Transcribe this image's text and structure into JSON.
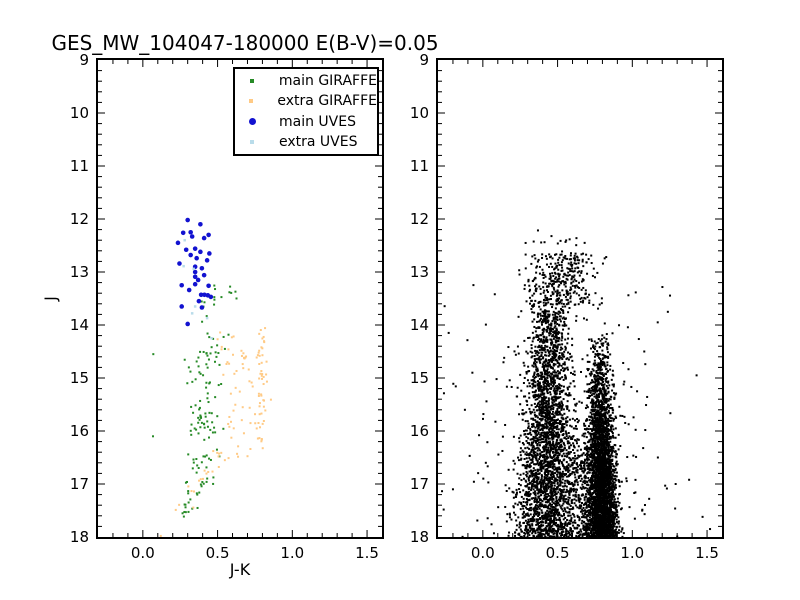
{
  "figure": {
    "background": "#ffffff",
    "title": "GES_MW_104047-180000 E(B-V)=0.05"
  },
  "chart_data": [
    {
      "id": "left-cmd",
      "type": "scatter",
      "title": "GES_MW_104047-180000 E(B-V)=0.05",
      "xlabel": "J-K",
      "ylabel": "J",
      "xlim": [
        -0.3,
        1.6
      ],
      "ylim": [
        18,
        9
      ],
      "grid": false,
      "xticks": {
        "values": [
          0.0,
          0.5,
          1.0,
          1.5
        ],
        "labels": [
          "0.0",
          "0.5",
          "1.0",
          "1.5"
        ],
        "minor_step": 0.1
      },
      "yticks": {
        "values": [
          9,
          10,
          11,
          12,
          13,
          14,
          15,
          16,
          17,
          18
        ],
        "labels": [
          "9",
          "10",
          "11",
          "12",
          "13",
          "14",
          "15",
          "16",
          "17",
          "18"
        ],
        "minor_step": 0.2
      },
      "legend": {
        "visible": true,
        "position": "upper center",
        "entries": [
          {
            "label": "main GIRAFFE",
            "color": "#268a26",
            "marker": "square",
            "display_size": 4
          },
          {
            "label": "extra GIRAFFE",
            "color": "#ffca85",
            "marker": "square",
            "display_size": 4
          },
          {
            "label": "main UVES",
            "color": "#1212d0",
            "marker": "circle",
            "display_size": 7
          },
          {
            "label": "extra UVES",
            "color": "#b9dcea",
            "marker": "square",
            "display_size": 4
          }
        ]
      },
      "seed": 20,
      "series": [
        {
          "name": "main GIRAFFE",
          "color": "#268a26",
          "marker": "square",
          "size": 2,
          "points": [
            [
              0.07,
              14.55
            ],
            [
              0.068,
              16.1
            ]
          ],
          "clusters": [
            {
              "n": 26,
              "j": [
                13.25,
                14.55
              ],
              "jpow": 1.0,
              "x0": 0.52,
              "xdrift": -0.04,
              "sx": 0.07,
              "sxg": 0,
              "clip": [
                0.38,
                0.72
              ]
            },
            {
              "n": 95,
              "j": [
                14.45,
                17.0
              ],
              "jpow": 1.05,
              "x0": 0.415,
              "xdrift": -0.008,
              "sx": 0.05,
              "sxg": 0,
              "clip": [
                0.28,
                0.58
              ]
            },
            {
              "n": 22,
              "j": [
                16.95,
                17.62
              ],
              "jpow": 1.0,
              "x0": 0.36,
              "xdrift": -0.09,
              "sx": 0.035,
              "sxg": 0,
              "clip": [
                0.22,
                0.48
              ]
            }
          ]
        },
        {
          "name": "extra GIRAFFE",
          "color": "#ffca85",
          "marker": "square",
          "size": 2,
          "points": [
            [
              0.12,
              17.98
            ]
          ],
          "clusters": [
            {
              "n": 52,
              "j": [
                14.0,
                16.35
              ],
              "jpow": 1.1,
              "x0": 0.795,
              "xdrift": 0.0,
              "sx": 0.022,
              "sxg": 0,
              "clip": [
                0.72,
                0.86
              ]
            },
            {
              "n": 44,
              "j": [
                14.55,
                16.6
              ],
              "jpow": 1.0,
              "x0": 0.66,
              "xdrift": -0.01,
              "sx": 0.065,
              "sxg": 0,
              "clip": [
                0.5,
                0.79
              ]
            },
            {
              "n": 9,
              "j": [
                13.95,
                14.55
              ],
              "jpow": 1.0,
              "x0": 0.58,
              "xdrift": 0.0,
              "sx": 0.045,
              "sxg": 0,
              "clip": [
                0.5,
                0.68
              ]
            },
            {
              "n": 18,
              "j": [
                16.35,
                17.9
              ],
              "jpow": 1.0,
              "x0": 0.52,
              "xdrift": -0.23,
              "sx": 0.03,
              "sxg": 0,
              "clip": [
                0.12,
                0.6
              ]
            }
          ]
        },
        {
          "name": "main UVES",
          "color": "#1212d0",
          "marker": "circle",
          "size": 4.6,
          "points": [
            [
              0.3,
              12.02
            ],
            [
              0.385,
              12.1
            ],
            [
              0.33,
              12.33
            ],
            [
              0.27,
              12.26
            ],
            [
              0.32,
              12.25
            ],
            [
              0.44,
              12.3
            ],
            [
              0.41,
              12.36
            ],
            [
              0.235,
              12.45
            ],
            [
              0.29,
              12.58
            ],
            [
              0.35,
              12.56
            ],
            [
              0.385,
              12.62
            ],
            [
              0.445,
              12.65
            ],
            [
              0.32,
              12.68
            ],
            [
              0.36,
              12.74
            ],
            [
              0.43,
              12.78
            ],
            [
              0.245,
              12.84
            ],
            [
              0.35,
              12.9
            ],
            [
              0.395,
              12.93
            ],
            [
              0.35,
              13.0
            ],
            [
              0.41,
              13.06
            ],
            [
              0.35,
              13.09
            ],
            [
              0.37,
              13.15
            ],
            [
              0.35,
              13.23
            ],
            [
              0.26,
              13.25
            ],
            [
              0.44,
              13.26
            ],
            [
              0.31,
              13.34
            ],
            [
              0.39,
              13.43
            ],
            [
              0.412,
              13.43
            ],
            [
              0.435,
              13.44
            ],
            [
              0.455,
              13.47
            ],
            [
              0.26,
              13.65
            ],
            [
              0.395,
              13.67
            ],
            [
              0.375,
              13.55
            ],
            [
              0.3,
              13.98
            ]
          ],
          "clusters": []
        },
        {
          "name": "extra UVES",
          "color": "#b9dcea",
          "marker": "square",
          "size": 2.5,
          "points": [
            [
              0.28,
              12.4
            ],
            [
              0.273,
              12.89
            ],
            [
              0.34,
              12.94
            ],
            [
              0.35,
              13.65
            ],
            [
              0.33,
              13.78
            ],
            [
              0.43,
              13.87
            ],
            [
              0.46,
              14.25
            ]
          ],
          "clusters": []
        }
      ]
    },
    {
      "id": "right-cmd",
      "type": "scatter",
      "title": "",
      "xlabel": "",
      "ylabel": "",
      "xlim": [
        -0.3,
        1.6
      ],
      "ylim": [
        18,
        9
      ],
      "grid": false,
      "xticks": {
        "values": [
          0.0,
          0.5,
          1.0,
          1.5
        ],
        "labels": [
          "0.0",
          "0.5",
          "1.0",
          "1.5"
        ],
        "minor_step": 0.1
      },
      "yticks": {
        "values": [
          9,
          10,
          11,
          12,
          13,
          14,
          15,
          16,
          17,
          18
        ],
        "labels": [
          "9",
          "10",
          "11",
          "12",
          "13",
          "14",
          "15",
          "16",
          "17",
          "18"
        ],
        "minor_step": 0.2
      },
      "legend": {
        "visible": false,
        "entries": []
      },
      "seed": 77,
      "series": [
        {
          "name": "",
          "color": "#000000",
          "marker": "square",
          "size": 2,
          "points": [
            [
              1.38,
              16.92
            ],
            [
              1.47,
              17.62
            ],
            [
              1.29,
              17.0
            ],
            [
              1.43,
              14.95
            ],
            [
              1.17,
              13.95
            ],
            [
              0.08,
              13.42
            ],
            [
              -0.07,
              14.9
            ],
            [
              -0.2,
              17.1
            ],
            [
              1.52,
              17.85
            ],
            [
              0.02,
              16.6
            ],
            [
              -0.12,
              15.6
            ],
            [
              1.08,
              14.5
            ]
          ],
          "clusters": [
            {
              "n": 18,
              "j": [
                12.15,
                12.68
              ],
              "jpow": 1.4,
              "x0": 0.55,
              "xdrift": 0.0,
              "sx": 0.12,
              "sxg": 0,
              "clip": [
                0.28,
                0.85
              ]
            },
            {
              "n": 320,
              "j": [
                12.65,
                13.62
              ],
              "jpow": 1.15,
              "x0": 0.52,
              "xdrift": -0.02,
              "sx": 0.115,
              "sxg": 0,
              "clip": [
                0.18,
                0.95
              ]
            },
            {
              "n": 2500,
              "j": [
                13.55,
                18.05
              ],
              "jpow": 1.35,
              "x0": 0.455,
              "xdrift": -0.013,
              "sx": 0.058,
              "sxg": 0.009,
              "clip": [
                0.08,
                0.72
              ]
            },
            {
              "n": 3300,
              "j": [
                13.95,
                18.05
              ],
              "jpow": 2.3,
              "x0": 0.775,
              "xdrift": 0.006,
              "sx": 0.035,
              "sxg": 0.004,
              "clip": [
                0.58,
                1.05
              ]
            },
            {
              "n": 420,
              "j": [
                15.4,
                18.05
              ],
              "jpow": 1.8,
              "x0": 0.62,
              "xdrift": 0.0,
              "sx": 0.07,
              "sxg": 0,
              "clip": [
                0.45,
                0.8
              ]
            },
            {
              "n": 330,
              "j": [
                12.8,
                18.05
              ],
              "jpow": 1.7,
              "x0": 0.55,
              "xdrift": 0.0,
              "sx": 0.33,
              "sxg": 0,
              "clip": [
                -0.28,
                1.57
              ]
            }
          ]
        }
      ]
    }
  ]
}
